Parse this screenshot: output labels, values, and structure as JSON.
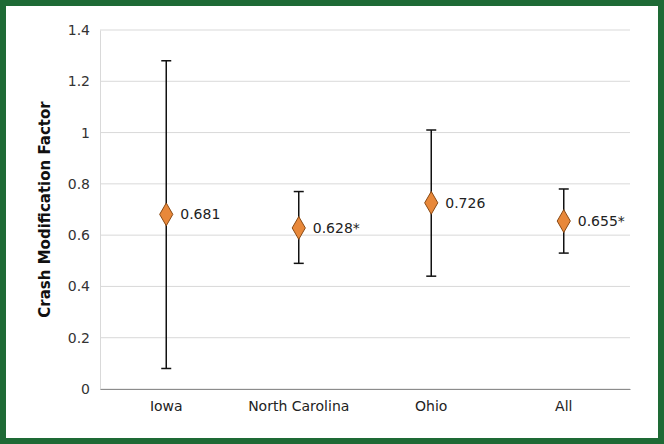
{
  "chart_data": {
    "type": "errorbar",
    "y_label": "Crash Modification Factor",
    "categories": [
      "Iowa",
      "North Carolina",
      "Ohio",
      "All"
    ],
    "values": [
      0.681,
      0.628,
      0.726,
      0.655
    ],
    "value_labels": [
      "0.681",
      "0.628*",
      "0.726",
      "0.655*"
    ],
    "error_low": [
      0.08,
      0.49,
      0.44,
      0.53
    ],
    "error_high": [
      1.28,
      0.77,
      1.01,
      0.78
    ],
    "color": "#e8883a",
    "marker": "diamond",
    "data_labels": true,
    "ylim": [
      0,
      1.4
    ],
    "yticks": [
      0,
      0.2,
      0.4,
      0.6,
      0.8,
      1,
      1.2,
      1.4
    ],
    "grid": true
  }
}
